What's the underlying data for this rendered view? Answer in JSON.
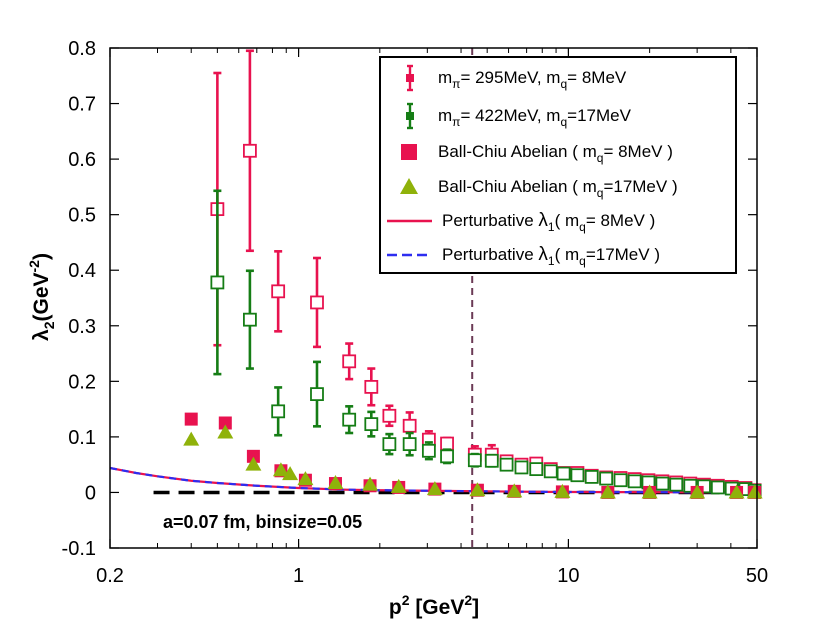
{
  "chart_data": {
    "type": "scatter",
    "xscale": "log",
    "xlim": [
      0.2,
      50
    ],
    "ylim": [
      -0.1,
      0.8
    ],
    "xticks": [
      0.2,
      1,
      10,
      50
    ],
    "xtick_labels": [
      "0.2",
      "1",
      "10",
      "50"
    ],
    "yticks": [
      -0.1,
      0,
      0.1,
      0.2,
      0.3,
      0.4,
      0.5,
      0.6,
      0.7,
      0.8
    ],
    "ytick_labels": [
      "-0.1",
      "0",
      "0.1",
      "0.2",
      "0.3",
      "0.4",
      "0.5",
      "0.6",
      "0.7",
      "0.8"
    ],
    "xlabel": {
      "base": "p",
      "sup": "2",
      "rest": " [GeV",
      "sup2": "2",
      "end": "]"
    },
    "ylabel": {
      "sym": "λ",
      "sub": "2",
      "rest": "(GeV",
      "sup": "-2",
      "end": ")"
    },
    "annotation": "a=0.07 fm, binsize=0.05",
    "vline_x": 4.4,
    "hline_y": 0,
    "colors": {
      "red": "#e8124f",
      "green": "#157d15",
      "olive": "#8fb20a",
      "blue": "#2d2df0",
      "black": "#000000",
      "vline": "#6b3a55"
    },
    "series": [
      {
        "name": "lattice_295",
        "legend": {
          "m": "m",
          "msub": "π",
          "mid": "= 295MeV, m",
          "qsub": "q",
          "end": "= 8MeV"
        },
        "style": "open-square-errorbar",
        "color": "#e8124f",
        "points": [
          {
            "x": 0.5,
            "y": 0.51,
            "err": 0.245
          },
          {
            "x": 0.66,
            "y": 0.615,
            "err": 0.18
          },
          {
            "x": 0.84,
            "y": 0.362,
            "err": 0.072
          },
          {
            "x": 1.17,
            "y": 0.342,
            "err": 0.08
          },
          {
            "x": 1.54,
            "y": 0.236,
            "err": 0.032
          },
          {
            "x": 1.86,
            "y": 0.19,
            "err": 0.033
          },
          {
            "x": 2.17,
            "y": 0.138,
            "err": 0.018
          },
          {
            "x": 2.58,
            "y": 0.12,
            "err": 0.024
          },
          {
            "x": 3.04,
            "y": 0.095,
            "err": 0.015
          },
          {
            "x": 3.55,
            "y": 0.088,
            "err": 0.01
          },
          {
            "x": 4.5,
            "y": 0.068,
            "err": 0.015
          },
          {
            "x": 5.2,
            "y": 0.068,
            "err": 0.017
          },
          {
            "x": 5.9,
            "y": 0.056,
            "err": 0.01
          },
          {
            "x": 6.7,
            "y": 0.05,
            "err": 0.008
          },
          {
            "x": 7.6,
            "y": 0.052,
            "err": 0.008
          },
          {
            "x": 8.6,
            "y": 0.042,
            "err": 0.006
          },
          {
            "x": 9.6,
            "y": 0.035,
            "err": 0.005
          },
          {
            "x": 10.8,
            "y": 0.035,
            "err": 0.005
          },
          {
            "x": 12.2,
            "y": 0.03,
            "err": 0.004
          },
          {
            "x": 13.8,
            "y": 0.027,
            "err": 0.004
          },
          {
            "x": 15.6,
            "y": 0.026,
            "err": 0.004
          },
          {
            "x": 17.6,
            "y": 0.024,
            "err": 0.003
          },
          {
            "x": 19.8,
            "y": 0.022,
            "err": 0.003
          },
          {
            "x": 22.3,
            "y": 0.02,
            "err": 0.003
          },
          {
            "x": 25.1,
            "y": 0.018,
            "err": 0.003
          },
          {
            "x": 28.3,
            "y": 0.016,
            "err": 0.003
          },
          {
            "x": 31.8,
            "y": 0.014,
            "err": 0.003
          },
          {
            "x": 35.8,
            "y": 0.012,
            "err": 0.003
          },
          {
            "x": 40.3,
            "y": 0.01,
            "err": 0.003
          },
          {
            "x": 45.3,
            "y": 0.008,
            "err": 0.003
          },
          {
            "x": 49.0,
            "y": 0.004,
            "err": 0.003
          }
        ]
      },
      {
        "name": "lattice_422",
        "legend": {
          "m": "m",
          "msub": "π",
          "mid": "= 422MeV, m",
          "qsub": "q",
          "end": "=17MeV"
        },
        "style": "open-square-errorbar",
        "color": "#157d15",
        "points": [
          {
            "x": 0.5,
            "y": 0.378,
            "err": 0.165
          },
          {
            "x": 0.66,
            "y": 0.311,
            "err": 0.088
          },
          {
            "x": 0.84,
            "y": 0.146,
            "err": 0.043
          },
          {
            "x": 1.17,
            "y": 0.177,
            "err": 0.058
          },
          {
            "x": 1.54,
            "y": 0.131,
            "err": 0.024
          },
          {
            "x": 1.86,
            "y": 0.123,
            "err": 0.022
          },
          {
            "x": 2.17,
            "y": 0.087,
            "err": 0.018
          },
          {
            "x": 2.58,
            "y": 0.087,
            "err": 0.02
          },
          {
            "x": 3.04,
            "y": 0.075,
            "err": 0.015
          },
          {
            "x": 3.55,
            "y": 0.065,
            "err": 0.012
          },
          {
            "x": 4.5,
            "y": 0.058,
            "err": 0.011
          },
          {
            "x": 5.2,
            "y": 0.057,
            "err": 0.01
          },
          {
            "x": 5.9,
            "y": 0.05,
            "err": 0.008
          },
          {
            "x": 6.7,
            "y": 0.045,
            "err": 0.007
          },
          {
            "x": 7.6,
            "y": 0.042,
            "err": 0.006
          },
          {
            "x": 8.6,
            "y": 0.038,
            "err": 0.005
          },
          {
            "x": 9.6,
            "y": 0.034,
            "err": 0.005
          },
          {
            "x": 10.8,
            "y": 0.031,
            "err": 0.005
          },
          {
            "x": 12.2,
            "y": 0.028,
            "err": 0.004
          },
          {
            "x": 13.8,
            "y": 0.025,
            "err": 0.004
          },
          {
            "x": 15.6,
            "y": 0.022,
            "err": 0.004
          },
          {
            "x": 17.6,
            "y": 0.02,
            "err": 0.003
          },
          {
            "x": 19.8,
            "y": 0.018,
            "err": 0.003
          },
          {
            "x": 22.3,
            "y": 0.016,
            "err": 0.003
          },
          {
            "x": 25.1,
            "y": 0.014,
            "err": 0.003
          },
          {
            "x": 28.3,
            "y": 0.012,
            "err": 0.003
          },
          {
            "x": 31.8,
            "y": 0.011,
            "err": 0.003
          },
          {
            "x": 35.8,
            "y": 0.009,
            "err": 0.003
          },
          {
            "x": 40.3,
            "y": 0.007,
            "err": 0.003
          },
          {
            "x": 45.3,
            "y": 0.006,
            "err": 0.003
          },
          {
            "x": 49.0,
            "y": 0.003,
            "err": 0.003
          }
        ]
      },
      {
        "name": "ball_chiu_8",
        "legend": {
          "label": "Ball-Chiu Abelian ( m",
          "qsub": "q",
          "end": "= 8MeV )"
        },
        "style": "filled-square",
        "color": "#e8124f",
        "points": [
          {
            "x": 0.4,
            "y": 0.132
          },
          {
            "x": 0.535,
            "y": 0.125
          },
          {
            "x": 0.68,
            "y": 0.065
          },
          {
            "x": 0.86,
            "y": 0.039
          },
          {
            "x": 1.06,
            "y": 0.022
          },
          {
            "x": 1.37,
            "y": 0.016
          },
          {
            "x": 1.84,
            "y": 0.012
          },
          {
            "x": 2.35,
            "y": 0.009
          },
          {
            "x": 3.2,
            "y": 0.006
          },
          {
            "x": 4.6,
            "y": 0.004
          },
          {
            "x": 6.3,
            "y": 0.002
          },
          {
            "x": 9.5,
            "y": 0.001
          },
          {
            "x": 14.0,
            "y": 0.0
          },
          {
            "x": 20.0,
            "y": 0.0
          },
          {
            "x": 30.0,
            "y": 0.0
          },
          {
            "x": 42.0,
            "y": 0.0
          },
          {
            "x": 49.0,
            "y": 0.0
          }
        ]
      },
      {
        "name": "ball_chiu_17",
        "legend": {
          "label": "Ball-Chiu Abelian ( m",
          "qsub": "q",
          "end": "=17MeV )"
        },
        "style": "filled-triangle",
        "color": "#8fb20a",
        "points": [
          {
            "x": 0.4,
            "y": 0.095
          },
          {
            "x": 0.535,
            "y": 0.108
          },
          {
            "x": 0.68,
            "y": 0.05
          },
          {
            "x": 0.86,
            "y": 0.04
          },
          {
            "x": 0.93,
            "y": 0.033
          },
          {
            "x": 1.06,
            "y": 0.024
          },
          {
            "x": 1.37,
            "y": 0.017
          },
          {
            "x": 1.84,
            "y": 0.014
          },
          {
            "x": 2.35,
            "y": 0.01
          },
          {
            "x": 3.2,
            "y": 0.006
          },
          {
            "x": 4.6,
            "y": 0.004
          },
          {
            "x": 6.3,
            "y": 0.002
          },
          {
            "x": 9.5,
            "y": 0.001
          },
          {
            "x": 14.0,
            "y": 0.0
          },
          {
            "x": 20.0,
            "y": 0.0
          },
          {
            "x": 30.0,
            "y": 0.0
          },
          {
            "x": 42.0,
            "y": 0.0
          },
          {
            "x": 49.0,
            "y": 0.0
          }
        ]
      },
      {
        "name": "perturbative_8",
        "legend": {
          "label": "Perturbative ",
          "sym": "λ",
          "sub": "1",
          "end": "( m",
          "qsub": "q",
          "end2": "= 8MeV )"
        },
        "style": "line",
        "color": "#e8124f",
        "x": [
          0.2,
          0.25,
          0.3,
          0.4,
          0.5,
          0.7,
          1.0,
          1.5,
          2.0,
          3.0,
          5.0,
          8.0,
          15.0,
          30.0,
          50.0
        ],
        "y": [
          0.044,
          0.035,
          0.029,
          0.021,
          0.017,
          0.012,
          0.008,
          0.005,
          0.004,
          0.003,
          0.002,
          0.001,
          0.0006,
          0.0003,
          0.0002
        ]
      },
      {
        "name": "perturbative_17",
        "legend": {
          "label": "Perturbative ",
          "sym": "λ",
          "sub": "1",
          "end": "( m",
          "qsub": "q",
          "end2": "=17MeV )"
        },
        "style": "dashed-line",
        "color": "#2d2df0",
        "x": [
          0.2,
          0.25,
          0.3,
          0.4,
          0.5,
          0.7,
          1.0,
          1.5,
          2.0,
          3.0,
          5.0,
          8.0,
          15.0,
          30.0,
          50.0
        ],
        "y": [
          0.044,
          0.035,
          0.029,
          0.021,
          0.017,
          0.012,
          0.008,
          0.005,
          0.004,
          0.003,
          0.002,
          0.001,
          0.0006,
          0.0003,
          0.0002
        ]
      }
    ]
  }
}
